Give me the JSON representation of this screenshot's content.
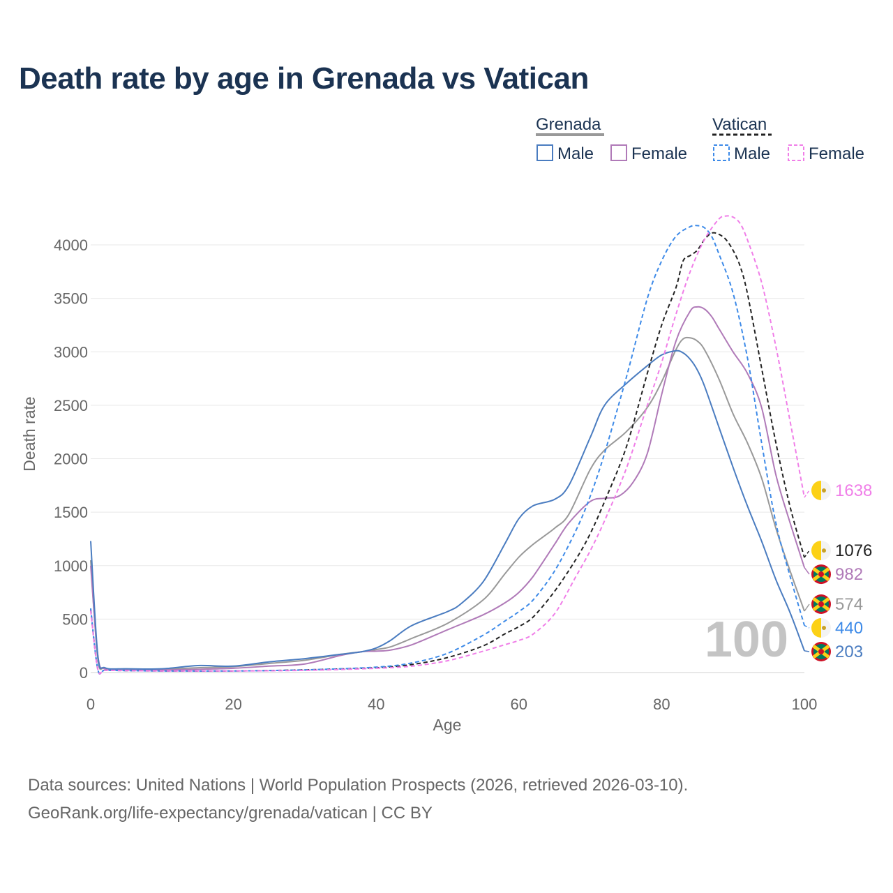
{
  "title": "Death rate by age in Grenada vs Vatican",
  "footer": {
    "line1": "Data sources: United Nations | World Population Prospects (2026, retrieved 2026-03-10).",
    "line2": "GeoRank.org/life-expectancy/grenada/vatican | CC BY"
  },
  "legend": {
    "groups": [
      {
        "name": "Grenada",
        "style": "solid",
        "color": "#999999",
        "items": [
          {
            "label": "Male",
            "color": "#4a7cc0"
          },
          {
            "label": "Female",
            "color": "#b07ab8"
          }
        ]
      },
      {
        "name": "Vatican",
        "style": "dashed",
        "color": "#222222",
        "items": [
          {
            "label": "Male",
            "color": "#3d8ae8"
          },
          {
            "label": "Female",
            "color": "#f07ee8"
          }
        ]
      }
    ]
  },
  "highlight_age": "100",
  "chart_data": {
    "type": "line",
    "title": "Death rate by age in Grenada vs Vatican",
    "xlabel": "Age",
    "ylabel": "Death rate",
    "xlim": [
      0,
      100
    ],
    "ylim": [
      0,
      4300
    ],
    "xticks": [
      0,
      20,
      40,
      60,
      80,
      100
    ],
    "yticks": [
      0,
      500,
      1000,
      1500,
      2000,
      2500,
      3000,
      3500,
      4000
    ],
    "grid": true,
    "series": [
      {
        "name": "Grenada Total",
        "country": "Grenada",
        "color": "#999999",
        "dash": false,
        "end_label": "574",
        "points": [
          [
            0,
            1050
          ],
          [
            1,
            130
          ],
          [
            2,
            40
          ],
          [
            5,
            30
          ],
          [
            10,
            30
          ],
          [
            15,
            45
          ],
          [
            20,
            55
          ],
          [
            25,
            85
          ],
          [
            30,
            115
          ],
          [
            35,
            170
          ],
          [
            38,
            195
          ],
          [
            40,
            215
          ],
          [
            42,
            240
          ],
          [
            45,
            320
          ],
          [
            50,
            460
          ],
          [
            55,
            680
          ],
          [
            58,
            920
          ],
          [
            60,
            1080
          ],
          [
            62,
            1200
          ],
          [
            65,
            1350
          ],
          [
            67,
            1480
          ],
          [
            70,
            1900
          ],
          [
            72,
            2080
          ],
          [
            75,
            2250
          ],
          [
            78,
            2480
          ],
          [
            80,
            2720
          ],
          [
            82,
            3020
          ],
          [
            83,
            3120
          ],
          [
            84,
            3130
          ],
          [
            85,
            3100
          ],
          [
            86,
            3020
          ],
          [
            88,
            2750
          ],
          [
            90,
            2420
          ],
          [
            92,
            2150
          ],
          [
            94,
            1820
          ],
          [
            96,
            1350
          ],
          [
            98,
            950
          ],
          [
            100,
            574
          ]
        ]
      },
      {
        "name": "Grenada Male",
        "country": "Grenada",
        "color": "#4a7cc0",
        "dash": false,
        "end_label": "203",
        "points": [
          [
            0,
            1230
          ],
          [
            1,
            160
          ],
          [
            2,
            45
          ],
          [
            5,
            35
          ],
          [
            10,
            35
          ],
          [
            15,
            65
          ],
          [
            20,
            60
          ],
          [
            25,
            100
          ],
          [
            30,
            130
          ],
          [
            35,
            170
          ],
          [
            38,
            195
          ],
          [
            40,
            230
          ],
          [
            42,
            300
          ],
          [
            45,
            440
          ],
          [
            50,
            570
          ],
          [
            52,
            650
          ],
          [
            55,
            850
          ],
          [
            58,
            1200
          ],
          [
            60,
            1440
          ],
          [
            62,
            1560
          ],
          [
            65,
            1620
          ],
          [
            67,
            1750
          ],
          [
            70,
            2200
          ],
          [
            72,
            2500
          ],
          [
            75,
            2700
          ],
          [
            78,
            2870
          ],
          [
            80,
            2970
          ],
          [
            82,
            3010
          ],
          [
            83,
            2990
          ],
          [
            84,
            2930
          ],
          [
            85,
            2830
          ],
          [
            86,
            2680
          ],
          [
            88,
            2300
          ],
          [
            90,
            1920
          ],
          [
            92,
            1560
          ],
          [
            94,
            1230
          ],
          [
            96,
            870
          ],
          [
            98,
            560
          ],
          [
            100,
            203
          ]
        ]
      },
      {
        "name": "Grenada Female",
        "country": "Grenada",
        "color": "#b07ab8",
        "dash": false,
        "end_label": "982",
        "points": [
          [
            0,
            1000
          ],
          [
            1,
            160
          ],
          [
            2,
            35
          ],
          [
            5,
            30
          ],
          [
            10,
            25
          ],
          [
            15,
            30
          ],
          [
            20,
            40
          ],
          [
            25,
            60
          ],
          [
            30,
            80
          ],
          [
            35,
            160
          ],
          [
            38,
            195
          ],
          [
            40,
            200
          ],
          [
            42,
            210
          ],
          [
            45,
            260
          ],
          [
            50,
            400
          ],
          [
            55,
            540
          ],
          [
            58,
            650
          ],
          [
            60,
            750
          ],
          [
            62,
            900
          ],
          [
            65,
            1200
          ],
          [
            67,
            1400
          ],
          [
            70,
            1600
          ],
          [
            72,
            1630
          ],
          [
            74,
            1650
          ],
          [
            76,
            1780
          ],
          [
            78,
            2050
          ],
          [
            80,
            2600
          ],
          [
            82,
            3100
          ],
          [
            84,
            3380
          ],
          [
            85,
            3420
          ],
          [
            86,
            3400
          ],
          [
            87,
            3330
          ],
          [
            88,
            3220
          ],
          [
            90,
            3000
          ],
          [
            92,
            2800
          ],
          [
            94,
            2480
          ],
          [
            96,
            1850
          ],
          [
            98,
            1400
          ],
          [
            100,
            982
          ]
        ]
      },
      {
        "name": "Vatican Total",
        "country": "Vatican",
        "color": "#222222",
        "dash": true,
        "end_label": "1076",
        "points": [
          [
            0,
            590
          ],
          [
            1,
            30
          ],
          [
            2,
            22
          ],
          [
            5,
            18
          ],
          [
            10,
            15
          ],
          [
            20,
            15
          ],
          [
            30,
            25
          ],
          [
            40,
            45
          ],
          [
            45,
            75
          ],
          [
            50,
            140
          ],
          [
            55,
            250
          ],
          [
            58,
            360
          ],
          [
            60,
            430
          ],
          [
            62,
            520
          ],
          [
            65,
            760
          ],
          [
            68,
            1060
          ],
          [
            70,
            1300
          ],
          [
            72,
            1600
          ],
          [
            75,
            2100
          ],
          [
            78,
            2800
          ],
          [
            80,
            3250
          ],
          [
            82,
            3600
          ],
          [
            83,
            3850
          ],
          [
            84,
            3900
          ],
          [
            85,
            3950
          ],
          [
            86,
            4050
          ],
          [
            87,
            4110
          ],
          [
            88,
            4100
          ],
          [
            89,
            4050
          ],
          [
            90,
            3950
          ],
          [
            91,
            3800
          ],
          [
            92,
            3550
          ],
          [
            94,
            2850
          ],
          [
            96,
            2150
          ],
          [
            98,
            1550
          ],
          [
            100,
            1076
          ]
        ]
      },
      {
        "name": "Vatican Male",
        "country": "Vatican",
        "color": "#3d8ae8",
        "dash": true,
        "end_label": "440",
        "points": [
          [
            0,
            600
          ],
          [
            1,
            30
          ],
          [
            2,
            22
          ],
          [
            5,
            18
          ],
          [
            10,
            15
          ],
          [
            20,
            15
          ],
          [
            30,
            25
          ],
          [
            40,
            50
          ],
          [
            45,
            90
          ],
          [
            50,
            180
          ],
          [
            55,
            350
          ],
          [
            58,
            480
          ],
          [
            60,
            570
          ],
          [
            62,
            680
          ],
          [
            65,
            950
          ],
          [
            68,
            1330
          ],
          [
            70,
            1650
          ],
          [
            72,
            2050
          ],
          [
            75,
            2750
          ],
          [
            78,
            3500
          ],
          [
            80,
            3850
          ],
          [
            82,
            4080
          ],
          [
            84,
            4170
          ],
          [
            85,
            4180
          ],
          [
            86,
            4160
          ],
          [
            87,
            4080
          ],
          [
            88,
            3920
          ],
          [
            90,
            3550
          ],
          [
            92,
            2950
          ],
          [
            94,
            2150
          ],
          [
            96,
            1400
          ],
          [
            98,
            900
          ],
          [
            100,
            440
          ]
        ]
      },
      {
        "name": "Vatican Female",
        "country": "Vatican",
        "color": "#f07ee8",
        "dash": true,
        "end_label": "1638",
        "points": [
          [
            0,
            580
          ],
          [
            1,
            30
          ],
          [
            2,
            22
          ],
          [
            5,
            18
          ],
          [
            10,
            15
          ],
          [
            20,
            15
          ],
          [
            30,
            20
          ],
          [
            40,
            40
          ],
          [
            45,
            60
          ],
          [
            50,
            110
          ],
          [
            55,
            200
          ],
          [
            58,
            260
          ],
          [
            60,
            300
          ],
          [
            62,
            360
          ],
          [
            65,
            550
          ],
          [
            68,
            900
          ],
          [
            70,
            1140
          ],
          [
            72,
            1420
          ],
          [
            75,
            1900
          ],
          [
            78,
            2500
          ],
          [
            80,
            2900
          ],
          [
            82,
            3350
          ],
          [
            84,
            3750
          ],
          [
            86,
            4050
          ],
          [
            88,
            4240
          ],
          [
            89,
            4270
          ],
          [
            90,
            4260
          ],
          [
            91,
            4200
          ],
          [
            92,
            4050
          ],
          [
            94,
            3650
          ],
          [
            96,
            3050
          ],
          [
            98,
            2350
          ],
          [
            100,
            1638
          ]
        ]
      }
    ]
  }
}
